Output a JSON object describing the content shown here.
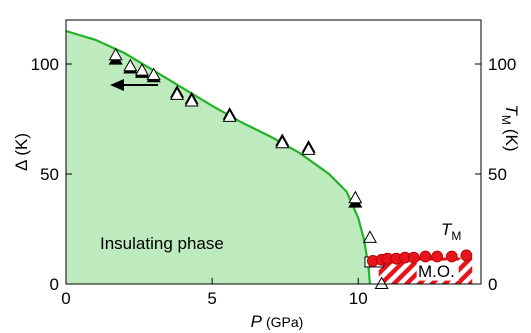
{
  "chart_data": {
    "type": "scatter",
    "xlabel": "P",
    "xunit": "(GPa)",
    "ylabel_left": "Δ",
    "ylabel_left_unit": "(K)",
    "ylabel_right": "T",
    "ylabel_right_sub": "M",
    "ylabel_right_unit": "(K)",
    "xlim": [
      0,
      14.2
    ],
    "ylim": [
      0,
      120
    ],
    "x_ticks": [
      0,
      5,
      10
    ],
    "y_ticks_left": [
      0,
      50,
      100
    ],
    "y_ticks_right": [
      0,
      50,
      100
    ],
    "grid": false,
    "colors": {
      "insulating_fill": "#bdebbd",
      "boundary_line": "#22b22a",
      "tm_points": "#e8141c",
      "mo_hatch": "#e8141c"
    },
    "annotations": {
      "insulating_phase": "Insulating phase",
      "mo": "M.O.",
      "tm_label": "T",
      "tm_label_sub": "M"
    },
    "boundary": {
      "x": [
        0,
        1,
        2,
        3,
        4,
        5,
        6,
        7,
        8,
        9,
        9.6,
        10.0,
        10.2,
        10.35,
        10.4
      ],
      "y": [
        115,
        111,
        105,
        97,
        89,
        81,
        73.5,
        67,
        59.5,
        50,
        42,
        30,
        20,
        8,
        0
      ]
    },
    "series": [
      {
        "name": "Δ (filled triangles)",
        "marker": "filled-triangle",
        "x": [
          1.7,
          2.2,
          2.6,
          3.0,
          3.8,
          4.3,
          5.6,
          7.4,
          8.3,
          9.9
        ],
        "y": [
          102,
          98,
          96,
          94,
          87,
          84,
          77,
          65,
          62,
          37
        ]
      },
      {
        "name": "Δ (open triangles)",
        "marker": "open-triangle",
        "x": [
          1.7,
          2.2,
          2.6,
          3.0,
          3.8,
          4.3,
          5.6,
          7.4,
          8.3,
          9.9,
          10.4,
          10.8
        ],
        "y": [
          104,
          99,
          97,
          95,
          86,
          83,
          76,
          64,
          61,
          39,
          21,
          0
        ]
      },
      {
        "name": "open squares",
        "marker": "open-square",
        "x": [
          10.4,
          10.55,
          10.7
        ],
        "y": [
          10,
          10,
          10
        ]
      },
      {
        "name": "T_M",
        "marker": "filled-circle",
        "x": [
          10.5,
          10.8,
          11.0,
          11.3,
          11.6,
          11.9,
          12.3,
          12.7,
          13.2,
          13.7
        ],
        "y": [
          10.5,
          11,
          11.5,
          11.5,
          12,
          12,
          12.5,
          12.5,
          12.5,
          13
        ]
      }
    ]
  }
}
